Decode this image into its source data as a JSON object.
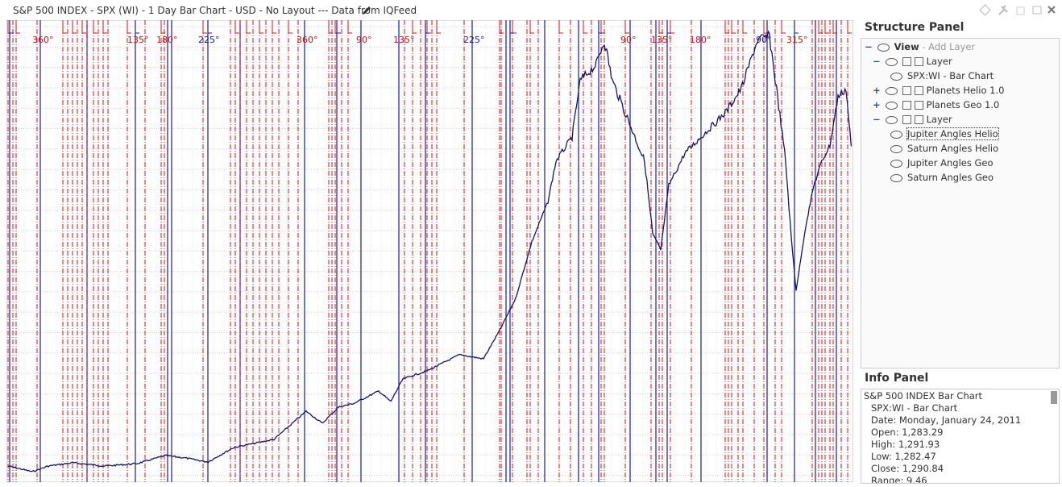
{
  "header": {
    "title": "S&P 500 INDEX - SPX (WI) - 1 Day Bar Chart - USD - No Layout --- Data from IQFeed"
  },
  "chart": {
    "angle_labels": [
      "360°",
      "135°",
      "180°",
      "225°",
      "360°",
      "90°",
      "135°",
      "225°",
      "90°",
      "135°",
      "180°",
      "90°",
      "315°"
    ]
  },
  "structure_panel": {
    "title": "Structure Panel",
    "items": [
      "View",
      "- Add Layer",
      "Layer",
      "SPX:WI - Bar Chart",
      "Planets Helio 1.0",
      "Planets Geo 1.0",
      "Layer",
      "Jupiter Angles Helio",
      "Saturn Angles Helio",
      "Jupiter Angles Geo",
      "Saturn Angles Geo"
    ]
  },
  "info_panel": {
    "title": "Info Panel",
    "lines": [
      "S&P 500 INDEX Bar Chart",
      "SPX:WI - Bar Chart",
      "Date: Monday, January 24, 2011",
      "Open: 1,283.29",
      "High: 1,291.93",
      "Low: 1,282.47",
      "Close: 1,290.84",
      "Range: 9.46"
    ]
  }
}
